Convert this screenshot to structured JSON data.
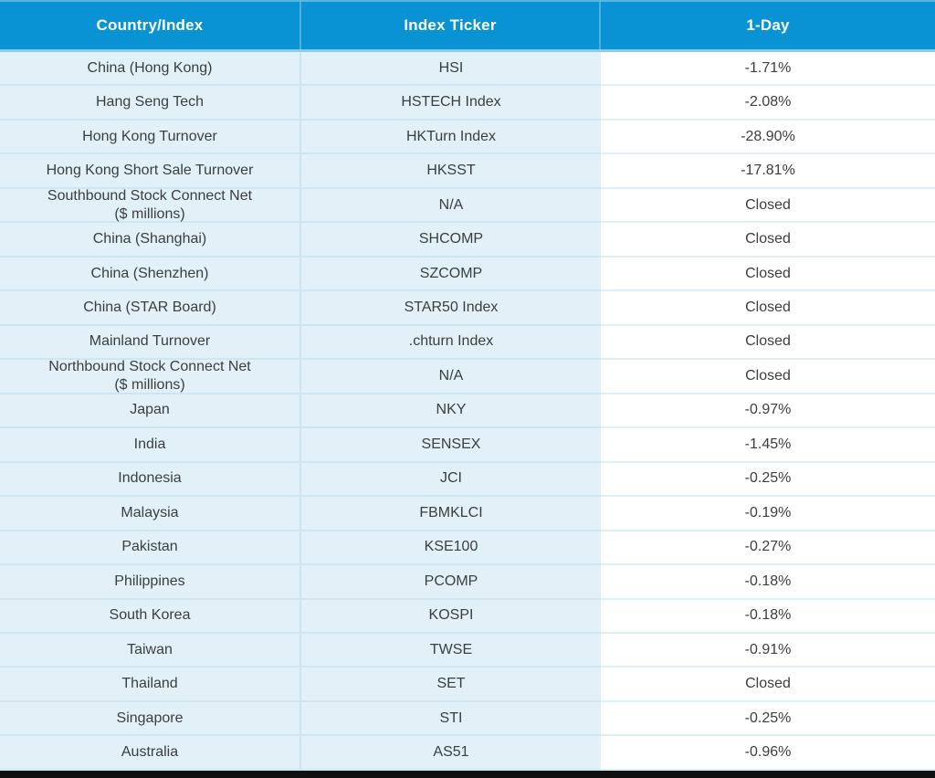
{
  "colors": {
    "header_bg": "#0a93d4",
    "header_text": "#ffffff",
    "header_divider": "#4fb2dd",
    "header_top_strip": "#5ab6e0",
    "header_bottom_strip": "#8ccbe9",
    "row_bg": "#e2f1f8",
    "value_col_bg": "#ffffff",
    "row_divider": "#cde7f2",
    "value_divider": "#ddeff7",
    "body_col_divider": "#cbe4f0",
    "text": "#3b3e3e",
    "bottom_bar": "#101010"
  },
  "table": {
    "columns": [
      "Country/Index",
      "Index Ticker",
      "1-Day"
    ],
    "rows": [
      {
        "country": "China (Hong Kong)",
        "ticker": "HSI",
        "one_day": "-1.71%"
      },
      {
        "country": "Hang Seng Tech",
        "ticker": "HSTECH Index",
        "one_day": "-2.08%"
      },
      {
        "country": "Hong Kong Turnover",
        "ticker": "HKTurn Index",
        "one_day": "-28.90%"
      },
      {
        "country": "Hong Kong Short Sale Turnover",
        "ticker": "HKSST",
        "one_day": "-17.81%"
      },
      {
        "country": "Southbound Stock Connect Net\n($ millions)",
        "ticker": "N/A",
        "one_day": "Closed"
      },
      {
        "country": "China (Shanghai)",
        "ticker": "SHCOMP",
        "one_day": "Closed"
      },
      {
        "country": "China (Shenzhen)",
        "ticker": "SZCOMP",
        "one_day": "Closed"
      },
      {
        "country": "China (STAR Board)",
        "ticker": "STAR50 Index",
        "one_day": "Closed"
      },
      {
        "country": "Mainland Turnover",
        "ticker": ".chturn Index",
        "one_day": "Closed"
      },
      {
        "country": "Northbound Stock Connect Net\n($ millions)",
        "ticker": "N/A",
        "one_day": "Closed"
      },
      {
        "country": "Japan",
        "ticker": "NKY",
        "one_day": "-0.97%"
      },
      {
        "country": "India",
        "ticker": "SENSEX",
        "one_day": "-1.45%"
      },
      {
        "country": "Indonesia",
        "ticker": "JCI",
        "one_day": "-0.25%"
      },
      {
        "country": "Malaysia",
        "ticker": "FBMKLCI",
        "one_day": "-0.19%"
      },
      {
        "country": "Pakistan",
        "ticker": "KSE100",
        "one_day": "-0.27%"
      },
      {
        "country": "Philippines",
        "ticker": "PCOMP",
        "one_day": "-0.18%"
      },
      {
        "country": "South Korea",
        "ticker": "KOSPI",
        "one_day": "-0.18%"
      },
      {
        "country": "Taiwan",
        "ticker": "TWSE",
        "one_day": "-0.91%"
      },
      {
        "country": "Thailand",
        "ticker": "SET",
        "one_day": "Closed"
      },
      {
        "country": "Singapore",
        "ticker": "STI",
        "one_day": "-0.25%"
      },
      {
        "country": "Australia",
        "ticker": "AS51",
        "one_day": "-0.96%"
      }
    ]
  },
  "chart_data": {
    "type": "table",
    "columns": [
      "Country/Index",
      "Index Ticker",
      "1-Day"
    ],
    "rows": [
      [
        "China (Hong Kong)",
        "HSI",
        "-1.71%"
      ],
      [
        "Hang Seng Tech",
        "HSTECH Index",
        "-2.08%"
      ],
      [
        "Hong Kong Turnover",
        "HKTurn Index",
        "-28.90%"
      ],
      [
        "Hong Kong Short Sale Turnover",
        "HKSST",
        "-17.81%"
      ],
      [
        "Southbound Stock Connect Net ($ millions)",
        "N/A",
        "Closed"
      ],
      [
        "China (Shanghai)",
        "SHCOMP",
        "Closed"
      ],
      [
        "China (Shenzhen)",
        "SZCOMP",
        "Closed"
      ],
      [
        "China (STAR Board)",
        "STAR50 Index",
        "Closed"
      ],
      [
        "Mainland Turnover",
        ".chturn Index",
        "Closed"
      ],
      [
        "Northbound Stock Connect Net ($ millions)",
        "N/A",
        "Closed"
      ],
      [
        "Japan",
        "NKY",
        "-0.97%"
      ],
      [
        "India",
        "SENSEX",
        "-1.45%"
      ],
      [
        "Indonesia",
        "JCI",
        "-0.25%"
      ],
      [
        "Malaysia",
        "FBMKLCI",
        "-0.19%"
      ],
      [
        "Pakistan",
        "KSE100",
        "-0.27%"
      ],
      [
        "Philippines",
        "PCOMP",
        "-0.18%"
      ],
      [
        "South Korea",
        "KOSPI",
        "-0.18%"
      ],
      [
        "Taiwan",
        "TWSE",
        "-0.91%"
      ],
      [
        "Thailand",
        "SET",
        "Closed"
      ],
      [
        "Singapore",
        "STI",
        "-0.25%"
      ],
      [
        "Australia",
        "AS51",
        "-0.96%"
      ]
    ]
  }
}
